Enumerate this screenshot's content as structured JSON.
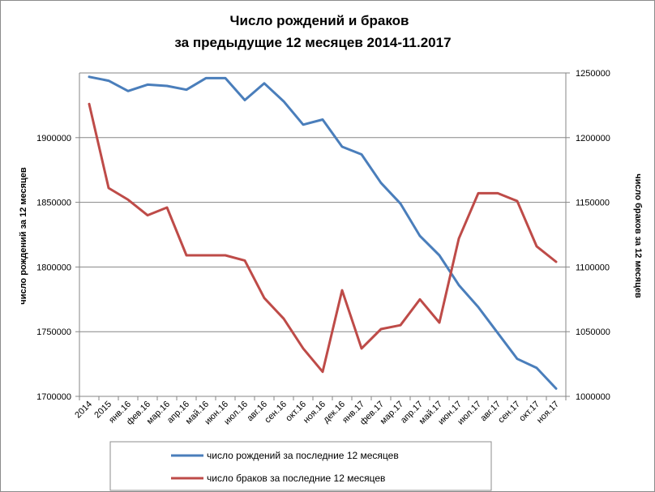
{
  "chart_data": {
    "type": "line",
    "title": [
      "Число рождений  и браков",
      "за предыдущие  12 месяцев 2014-11.2017"
    ],
    "categories": [
      "2014",
      "2015",
      "янв.16",
      "фев.16",
      "мар.16",
      "апр.16",
      "май.16",
      "июн.16",
      "июл.16",
      "авг.16",
      "сен.16",
      "окт.16",
      "ноя.16",
      "дек.16",
      "янв.17",
      "фев.17",
      "мар.17",
      "апр.17",
      "май.17",
      "июн.17",
      "июл.17",
      "авг.17",
      "сен.17",
      "окт.17",
      "ноя.17"
    ],
    "y_left": {
      "label": "число  рождений за 12 месяцев",
      "range": [
        1700000,
        1950000
      ],
      "ticks": [
        1700000,
        1750000,
        1800000,
        1850000,
        1900000
      ]
    },
    "y_right": {
      "label": "число  браков за 12 месяцев",
      "range": [
        1000000,
        1250000
      ],
      "ticks": [
        1000000,
        1050000,
        1100000,
        1150000,
        1200000,
        1250000
      ]
    },
    "grid": "horizontal",
    "legend_position": "bottom",
    "series": [
      {
        "name": "число рождений за последние 12 месяцев",
        "axis": "left",
        "color": "#4A7EBB",
        "values": [
          1947000,
          1944000,
          1936000,
          1941000,
          1940000,
          1937000,
          1946000,
          1946000,
          1929000,
          1942000,
          1928000,
          1910000,
          1914000,
          1893000,
          1887000,
          1865000,
          1849000,
          1824000,
          1809000,
          1786000,
          1769000,
          1749000,
          1729000,
          1722000,
          1706000
        ]
      },
      {
        "name": "число браков за последние 12 месяцев",
        "axis": "right",
        "color": "#BE4B48",
        "values": [
          1226000,
          1161000,
          1152000,
          1140000,
          1146000,
          1109000,
          1109000,
          1109000,
          1105000,
          1076000,
          1060000,
          1037000,
          1019000,
          1082000,
          1037000,
          1052000,
          1055000,
          1075000,
          1057000,
          1122000,
          1157000,
          1157000,
          1151000,
          1116000,
          1104000
        ]
      }
    ]
  }
}
